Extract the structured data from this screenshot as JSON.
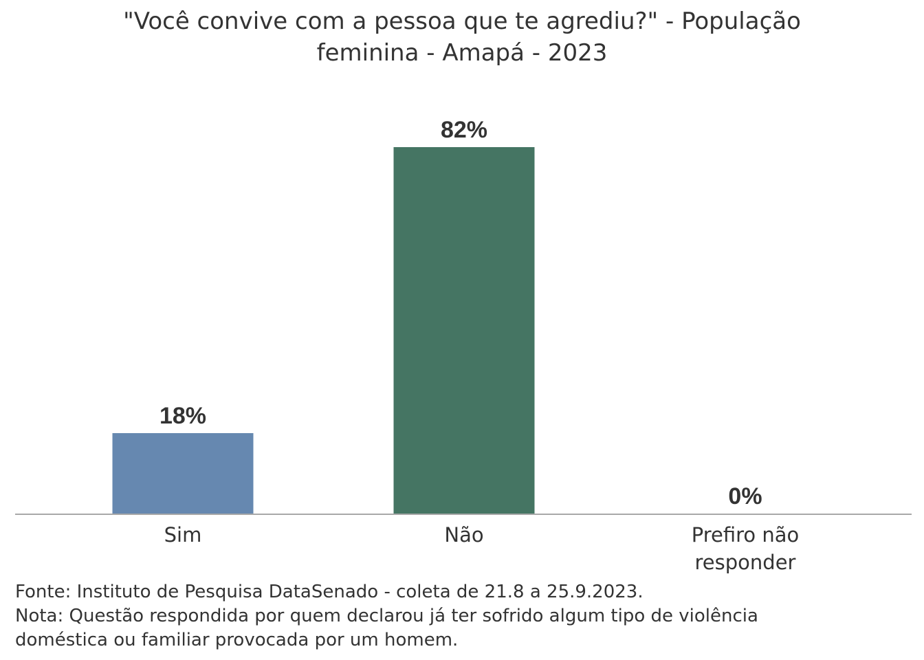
{
  "chart_data": {
    "type": "bar",
    "title": "\"Você convive com a pessoa que te agrediu?\" - População feminina - Amapá - 2023",
    "title_lines": [
      "\"Você convive com a pessoa que te agrediu?\" - População",
      "feminina - Amapá - 2023"
    ],
    "categories": [
      "Sim",
      "Não",
      "Prefiro não responder"
    ],
    "category_lines": [
      [
        "Sim"
      ],
      [
        "Não"
      ],
      [
        "Prefiro não",
        "responder"
      ]
    ],
    "values": [
      18,
      82,
      0
    ],
    "data_labels": [
      "18%",
      "82%",
      "0%"
    ],
    "colors": [
      "#6688b0",
      "#457563",
      "#999999"
    ],
    "ylim": [
      0,
      100
    ],
    "xlabel": "",
    "ylabel": "",
    "grid": false,
    "legend": "none"
  },
  "footnote": {
    "source": "Fonte: Instituto de Pesquisa DataSenado - coleta de 21.8 a 25.9.2023.",
    "note_line1": "Nota: Questão respondida por quem declarou já ter sofrido algum tipo de violência",
    "note_line2": "doméstica ou familiar provocada por um homem."
  }
}
